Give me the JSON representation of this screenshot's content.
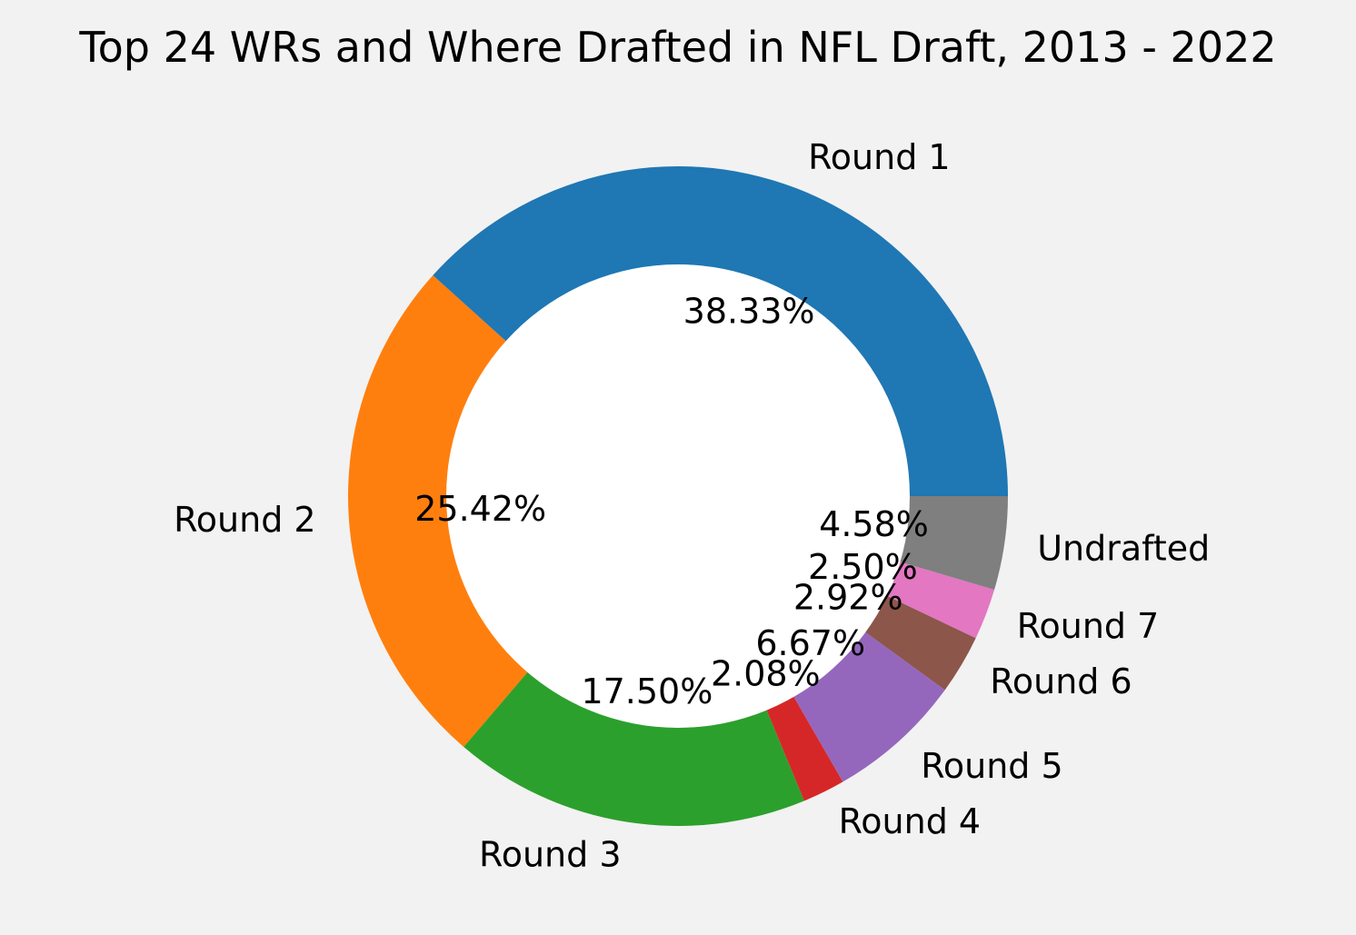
{
  "chart_data": {
    "type": "pie",
    "style": "donut",
    "title": "Top 24 WRs and Where Drafted in NFL Draft, 2013 - 2022",
    "start_angle_deg": 0,
    "direction": "counterclockwise",
    "inner_hole_color": "#ffffff",
    "background_color": "#f2f2f2",
    "slices": [
      {
        "label": "Round 1",
        "value": 38.33,
        "pct_label": "38.33%",
        "color": "#1f77b4"
      },
      {
        "label": "Round 2",
        "value": 25.42,
        "pct_label": "25.42%",
        "color": "#ff7f0e"
      },
      {
        "label": "Round 3",
        "value": 17.5,
        "pct_label": "17.50%",
        "color": "#2ca02c"
      },
      {
        "label": "Round 4",
        "value": 2.08,
        "pct_label": "2.08%",
        "color": "#d62728"
      },
      {
        "label": "Round 5",
        "value": 6.67,
        "pct_label": "6.67%",
        "color": "#9467bd"
      },
      {
        "label": "Round 6",
        "value": 2.92,
        "pct_label": "2.92%",
        "color": "#8c564b"
      },
      {
        "label": "Round 7",
        "value": 2.5,
        "pct_label": "2.50%",
        "color": "#e377c2"
      },
      {
        "label": "Undrafted",
        "value": 4.58,
        "pct_label": "4.58%",
        "color": "#7f7f7f"
      }
    ]
  }
}
